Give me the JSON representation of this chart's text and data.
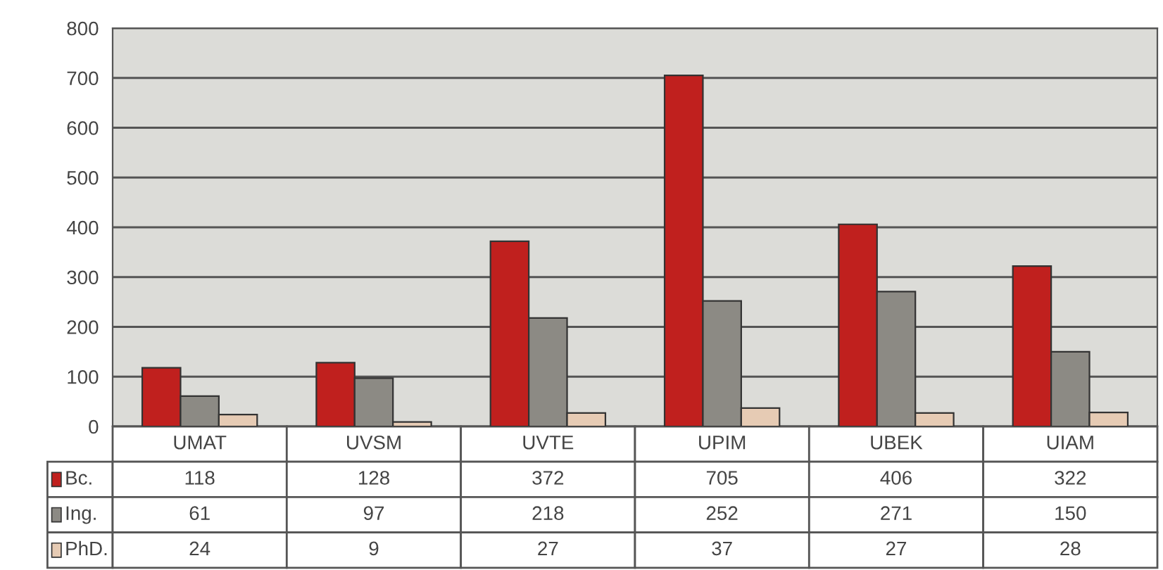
{
  "chart_data": {
    "type": "bar",
    "categories": [
      "UMAT",
      "UVSM",
      "UVTE",
      "UPIM",
      "UBEK",
      "UIAM"
    ],
    "series": [
      {
        "name": "Bc.",
        "color": "#c0201e",
        "values": [
          118,
          128,
          372,
          705,
          406,
          322
        ]
      },
      {
        "name": "Ing.",
        "color": "#8c8a84",
        "values": [
          61,
          97,
          218,
          252,
          271,
          150
        ]
      },
      {
        "name": "PhD.",
        "color": "#e6cbb4",
        "values": [
          24,
          9,
          27,
          37,
          27,
          28
        ]
      }
    ],
    "ylim": [
      0,
      800
    ],
    "yticks": [
      0,
      100,
      200,
      300,
      400,
      500,
      600,
      700,
      800
    ],
    "grid": "y",
    "data_labels": true,
    "legend": "bottom left"
  }
}
